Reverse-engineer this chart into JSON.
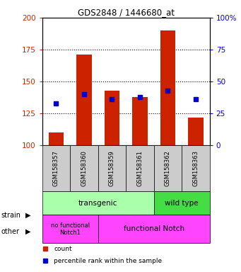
{
  "title": "GDS2848 / 1446680_at",
  "samples": [
    "GSM158357",
    "GSM158360",
    "GSM158359",
    "GSM158361",
    "GSM158362",
    "GSM158363"
  ],
  "counts": [
    110,
    171,
    143,
    138,
    190,
    122
  ],
  "percentiles": [
    133,
    140,
    136,
    138,
    143,
    136
  ],
  "ylim_left": [
    100,
    200
  ],
  "ylim_right": [
    0,
    100
  ],
  "yticks_left": [
    100,
    125,
    150,
    175,
    200
  ],
  "yticks_right": [
    0,
    25,
    50,
    75,
    100
  ],
  "ytick_right_labels": [
    "0",
    "25",
    "50",
    "75",
    "100%"
  ],
  "bar_color": "#cc2200",
  "dot_color": "#0000cc",
  "strain_labels": [
    "transgenic",
    "wild type"
  ],
  "strain_color_transgenic": "#aaffaa",
  "strain_color_wildtype": "#44dd44",
  "other_label_1": "no functional\nNotch1",
  "other_label_2": "functional Notch",
  "other_color": "#ff44ff",
  "label_color_left": "#cc2200",
  "label_color_right": "#0000cc",
  "tick_bg_color": "#cccccc",
  "legend_items": [
    {
      "color": "#cc2200",
      "label": "count"
    },
    {
      "color": "#0000cc",
      "label": "percentile rank within the sample"
    }
  ]
}
